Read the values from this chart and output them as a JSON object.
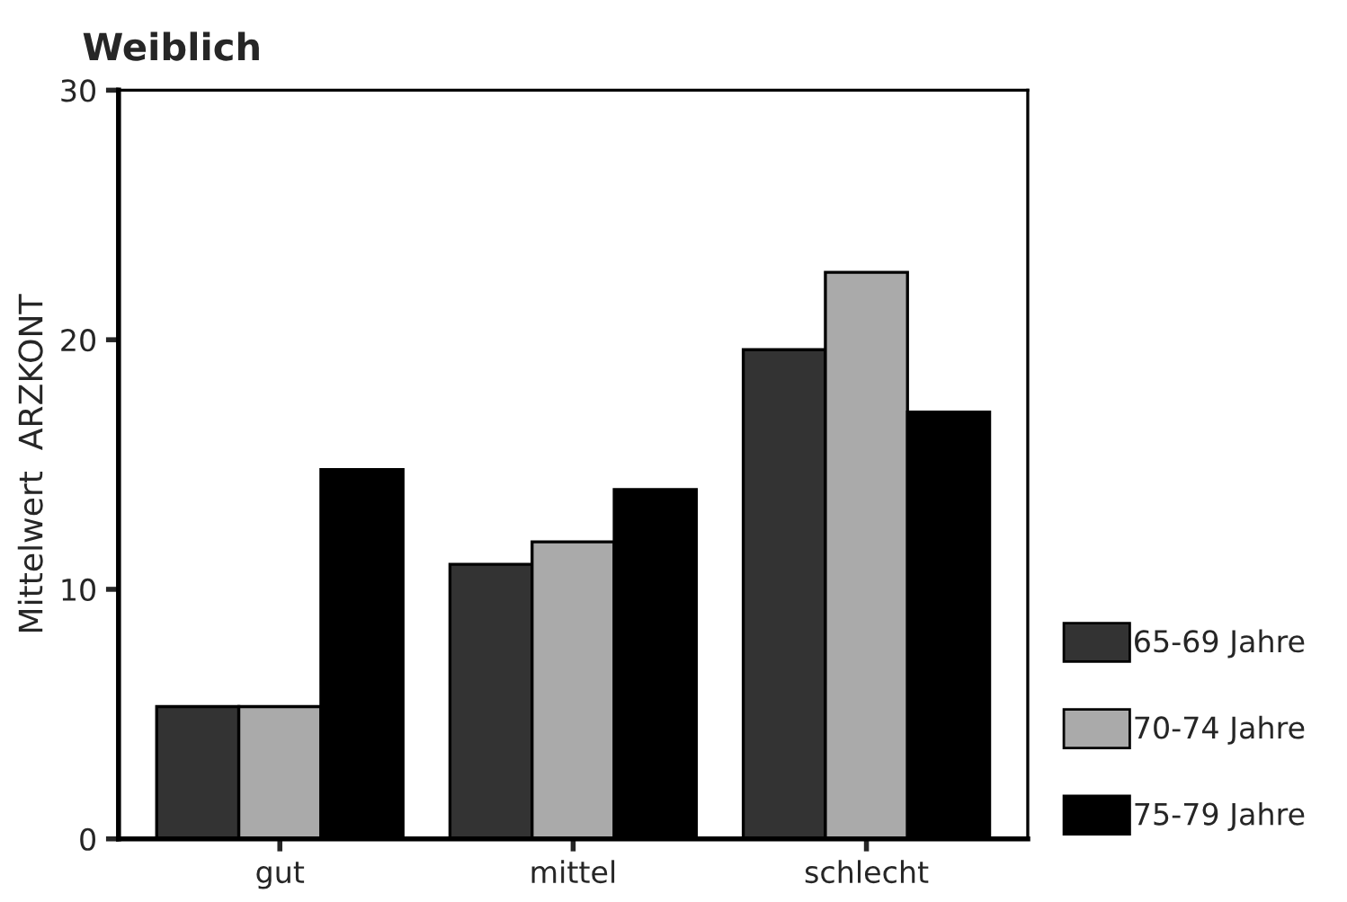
{
  "chart_data": {
    "type": "bar",
    "title": "Weiblich",
    "ylabel": "Mittelwert  ARZKONT",
    "categories": [
      "gut",
      "mittel",
      "schlecht"
    ],
    "series": [
      {
        "name": "65-69 Jahre",
        "color": "#333333",
        "values": [
          5.3,
          11.0,
          19.6
        ]
      },
      {
        "name": "70-74 Jahre",
        "color": "#aaaaaa",
        "values": [
          5.3,
          11.9,
          22.7
        ]
      },
      {
        "name": "75-79 Jahre",
        "color": "#000000",
        "values": [
          14.8,
          14.0,
          17.1
        ]
      }
    ],
    "ylim": [
      0,
      30
    ],
    "yticks": [
      0,
      10,
      20,
      30
    ],
    "grid": false,
    "legend": "right"
  }
}
